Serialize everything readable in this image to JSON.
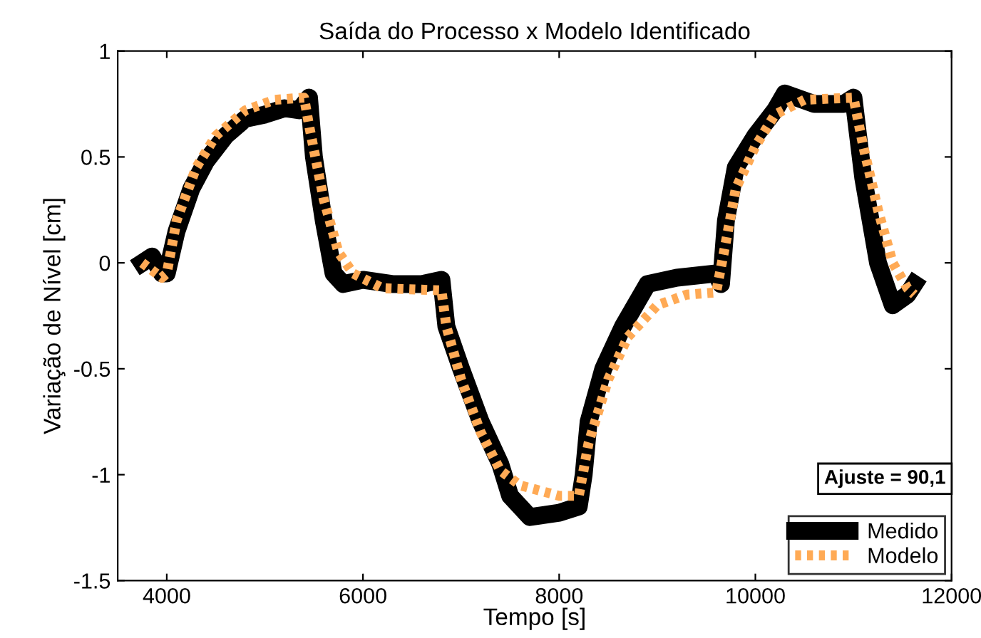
{
  "chart_data": {
    "type": "line",
    "title": "Saída do Processo x Modelo Identificado",
    "xlabel": "Tempo [s]",
    "ylabel": "Variação de Nível [cm]",
    "xlim": [
      3500,
      12000
    ],
    "xticks": [
      4000,
      6000,
      8000,
      10000,
      12000
    ],
    "ylim": [
      -1.5,
      1
    ],
    "yticks": [
      -1.5,
      -1,
      -0.5,
      0,
      0.5,
      1
    ],
    "grid": false,
    "legend": "bottom right",
    "annotations": [
      "Ajuste = 90,1"
    ],
    "series": [
      {
        "name": "Medido",
        "color": "#000000",
        "line_style": "solid",
        "x": [
          3750,
          3850,
          3950,
          4000,
          4100,
          4250,
          4400,
          4600,
          4800,
          5000,
          5200,
          5350,
          5450,
          5500,
          5600,
          5700,
          5800,
          6000,
          6300,
          6600,
          6800,
          6850,
          7000,
          7200,
          7400,
          7500,
          7700,
          8000,
          8200,
          8250,
          8300,
          8450,
          8650,
          8900,
          9200,
          9600,
          9650,
          9700,
          9800,
          10000,
          10200,
          10300,
          10600,
          10900,
          11000,
          11100,
          11250,
          11400,
          11550,
          11620
        ],
        "values": [
          0,
          0.03,
          -0.05,
          -0.05,
          0.15,
          0.35,
          0.48,
          0.6,
          0.68,
          0.7,
          0.73,
          0.72,
          0.78,
          0.5,
          0.2,
          -0.05,
          -0.1,
          -0.08,
          -0.1,
          -0.1,
          -0.08,
          -0.3,
          -0.5,
          -0.75,
          -0.95,
          -1.1,
          -1.2,
          -1.18,
          -1.15,
          -1.0,
          -0.75,
          -0.5,
          -0.3,
          -0.1,
          -0.07,
          -0.05,
          -0.1,
          0.2,
          0.45,
          0.6,
          0.72,
          0.8,
          0.75,
          0.75,
          0.78,
          0.4,
          0.0,
          -0.2,
          -0.15,
          -0.1
        ]
      },
      {
        "name": "Modelo",
        "color": "#ffaa55",
        "line_style": "dotted",
        "x": [
          3750,
          3950,
          4000,
          4100,
          4300,
          4500,
          4800,
          5100,
          5400,
          5450,
          5600,
          5750,
          5900,
          6200,
          6800,
          6850,
          7000,
          7200,
          7400,
          7600,
          8000,
          8200,
          8300,
          8500,
          8700,
          9000,
          9300,
          9600,
          9700,
          9800,
          10000,
          10200,
          10500,
          11000,
          11100,
          11250,
          11400,
          11550,
          11620
        ],
        "values": [
          0,
          -0.07,
          -0.05,
          0.2,
          0.45,
          0.6,
          0.72,
          0.77,
          0.78,
          0.65,
          0.3,
          0.05,
          -0.05,
          -0.12,
          -0.13,
          -0.3,
          -0.55,
          -0.8,
          -0.98,
          -1.05,
          -1.1,
          -1.1,
          -0.85,
          -0.55,
          -0.35,
          -0.2,
          -0.15,
          -0.14,
          0.1,
          0.35,
          0.55,
          0.7,
          0.77,
          0.78,
          0.55,
          0.25,
          0.0,
          -0.12,
          -0.15
        ]
      }
    ]
  }
}
